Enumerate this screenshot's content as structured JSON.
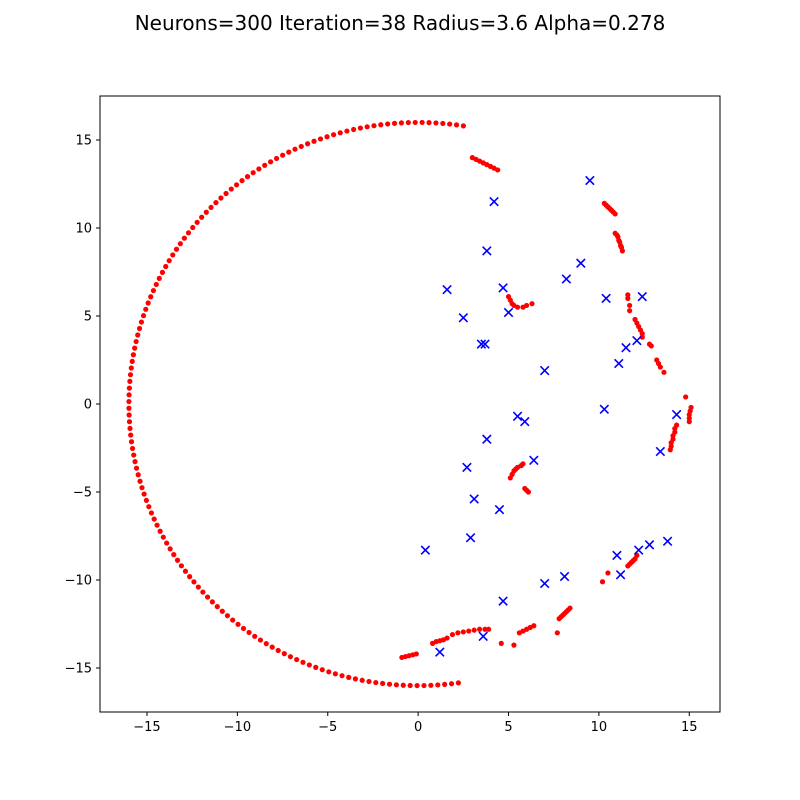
{
  "chart_data": {
    "type": "scatter",
    "title": "Neurons=300 Iteration=38 Radius=3.6 Alpha=0.278",
    "xlabel": "",
    "ylabel": "",
    "xlim": [
      -17.6,
      16.7
    ],
    "ylim": [
      -17.5,
      17.5
    ],
    "grid": false,
    "x_ticks": [
      -15,
      -10,
      -5,
      0,
      5,
      10,
      15
    ],
    "y_ticks": [
      -15,
      -10,
      -5,
      0,
      5,
      10,
      15
    ],
    "x_tick_labels": [
      "−15",
      "−10",
      "−5",
      "0",
      "5",
      "10",
      "15"
    ],
    "y_tick_labels": [
      "−15",
      "−10",
      "−5",
      "0",
      "5",
      "10",
      "15"
    ],
    "colors": {
      "neurons": "#ff0000",
      "cities": "#0000ff"
    },
    "series": [
      {
        "marker": "dot",
        "ring": {
          "radius": 16,
          "start_deg": 81,
          "end_deg": 278,
          "count": 145
        },
        "points": [
          [
            3.0,
            14.0
          ],
          [
            3.2,
            13.9
          ],
          [
            3.4,
            13.8
          ],
          [
            3.6,
            13.7
          ],
          [
            3.8,
            13.6
          ],
          [
            4.0,
            13.5
          ],
          [
            4.2,
            13.4
          ],
          [
            4.4,
            13.3
          ],
          [
            10.3,
            11.4
          ],
          [
            10.4,
            11.3
          ],
          [
            10.5,
            11.2
          ],
          [
            10.6,
            11.1
          ],
          [
            10.7,
            11.0
          ],
          [
            10.8,
            10.9
          ],
          [
            10.9,
            10.8
          ],
          [
            10.9,
            9.7
          ],
          [
            11.0,
            9.6
          ],
          [
            11.05,
            9.5
          ],
          [
            11.1,
            9.3
          ],
          [
            11.15,
            9.2
          ],
          [
            11.2,
            9.0
          ],
          [
            11.25,
            8.9
          ],
          [
            11.3,
            8.7
          ],
          [
            5.0,
            6.1
          ],
          [
            5.1,
            5.9
          ],
          [
            5.2,
            5.7
          ],
          [
            5.3,
            5.6
          ],
          [
            5.5,
            5.5
          ],
          [
            5.8,
            5.5
          ],
          [
            6.0,
            5.6
          ],
          [
            6.3,
            5.7
          ],
          [
            11.6,
            6.2
          ],
          [
            11.6,
            6.0
          ],
          [
            11.7,
            5.6
          ],
          [
            11.7,
            5.3
          ],
          [
            12.0,
            4.8
          ],
          [
            12.1,
            4.6
          ],
          [
            12.2,
            4.4
          ],
          [
            12.3,
            4.2
          ],
          [
            12.4,
            4.0
          ],
          [
            12.4,
            3.8
          ],
          [
            12.8,
            3.4
          ],
          [
            12.9,
            3.3
          ],
          [
            13.2,
            2.5
          ],
          [
            13.3,
            2.3
          ],
          [
            13.4,
            2.1
          ],
          [
            13.6,
            1.8
          ],
          [
            14.8,
            0.4
          ],
          [
            15.1,
            -0.2
          ],
          [
            15.05,
            -0.4
          ],
          [
            15.0,
            -0.6
          ],
          [
            15.0,
            -0.8
          ],
          [
            15.0,
            -1.0
          ],
          [
            14.3,
            -1.2
          ],
          [
            14.2,
            -1.4
          ],
          [
            14.2,
            -1.6
          ],
          [
            14.1,
            -1.8
          ],
          [
            14.1,
            -2.0
          ],
          [
            14.0,
            -2.2
          ],
          [
            14.0,
            -2.4
          ],
          [
            13.95,
            -2.6
          ],
          [
            5.1,
            -4.2
          ],
          [
            5.2,
            -4.0
          ],
          [
            5.3,
            -3.8
          ],
          [
            5.4,
            -3.7
          ],
          [
            5.5,
            -3.6
          ],
          [
            5.7,
            -3.5
          ],
          [
            5.8,
            -3.4
          ],
          [
            5.9,
            -4.8
          ],
          [
            6.0,
            -4.9
          ],
          [
            6.1,
            -5.0
          ],
          [
            10.2,
            -10.1
          ],
          [
            10.5,
            -9.6
          ],
          [
            11.6,
            -9.2
          ],
          [
            11.7,
            -9.1
          ],
          [
            11.8,
            -9.0
          ],
          [
            11.9,
            -8.9
          ],
          [
            12.0,
            -8.8
          ],
          [
            12.1,
            -8.6
          ],
          [
            7.8,
            -12.2
          ],
          [
            7.9,
            -12.1
          ],
          [
            8.0,
            -12.0
          ],
          [
            8.1,
            -11.9
          ],
          [
            8.2,
            -11.8
          ],
          [
            8.3,
            -11.7
          ],
          [
            8.4,
            -11.6
          ],
          [
            5.6,
            -13.0
          ],
          [
            5.8,
            -12.9
          ],
          [
            6.0,
            -12.8
          ],
          [
            6.2,
            -12.7
          ],
          [
            6.4,
            -12.6
          ],
          [
            7.7,
            -13.0
          ],
          [
            4.6,
            -13.6
          ],
          [
            5.3,
            -13.7
          ],
          [
            1.9,
            -13.1
          ],
          [
            2.2,
            -13.0
          ],
          [
            2.5,
            -12.95
          ],
          [
            2.8,
            -12.9
          ],
          [
            3.1,
            -12.85
          ],
          [
            3.4,
            -12.8
          ],
          [
            3.7,
            -12.8
          ],
          [
            3.9,
            -12.8
          ],
          [
            0.8,
            -13.6
          ],
          [
            1.0,
            -13.5
          ],
          [
            1.2,
            -13.45
          ],
          [
            1.4,
            -13.4
          ],
          [
            1.6,
            -13.3
          ],
          [
            -0.9,
            -14.4
          ],
          [
            -0.7,
            -14.35
          ],
          [
            -0.5,
            -14.3
          ],
          [
            -0.3,
            -14.25
          ],
          [
            -0.1,
            -14.2
          ]
        ]
      },
      {
        "marker": "x",
        "points": [
          [
            9.5,
            12.7
          ],
          [
            4.2,
            11.5
          ],
          [
            3.8,
            8.7
          ],
          [
            9.0,
            8.0
          ],
          [
            8.2,
            7.1
          ],
          [
            1.6,
            6.5
          ],
          [
            4.7,
            6.6
          ],
          [
            10.4,
            6.0
          ],
          [
            12.4,
            6.1
          ],
          [
            2.5,
            4.9
          ],
          [
            5.0,
            5.2
          ],
          [
            3.5,
            3.4
          ],
          [
            3.7,
            3.4
          ],
          [
            12.1,
            3.6
          ],
          [
            11.5,
            3.2
          ],
          [
            11.1,
            2.3
          ],
          [
            7.0,
            1.9
          ],
          [
            10.3,
            -0.3
          ],
          [
            14.3,
            -0.6
          ],
          [
            5.5,
            -0.7
          ],
          [
            5.9,
            -1.0
          ],
          [
            3.8,
            -2.0
          ],
          [
            13.4,
            -2.7
          ],
          [
            2.7,
            -3.6
          ],
          [
            6.4,
            -3.2
          ],
          [
            3.1,
            -5.4
          ],
          [
            4.5,
            -6.0
          ],
          [
            0.4,
            -8.3
          ],
          [
            2.9,
            -7.6
          ],
          [
            11.0,
            -8.6
          ],
          [
            12.8,
            -8.0
          ],
          [
            13.8,
            -7.8
          ],
          [
            12.2,
            -8.3
          ],
          [
            11.2,
            -9.7
          ],
          [
            8.1,
            -9.8
          ],
          [
            7.0,
            -10.2
          ],
          [
            4.7,
            -11.2
          ],
          [
            1.2,
            -14.1
          ],
          [
            3.6,
            -13.2
          ]
        ]
      }
    ]
  }
}
